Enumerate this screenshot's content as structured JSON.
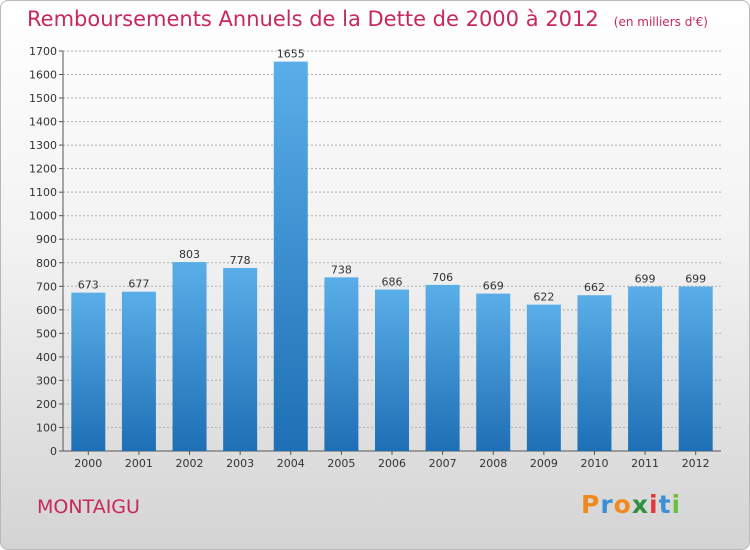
{
  "title": "Remboursements Annuels de la Dette de 2000 à 2012",
  "unit_note": "(en milliers d'€)",
  "commune": "MONTAIGU",
  "logo": {
    "letters": [
      "P",
      "r",
      "o",
      "x",
      "i",
      "t",
      "i"
    ],
    "colors": [
      "#f08a1e",
      "#3d8fd6",
      "#f08a1e",
      "#2f8f3f",
      "#e23a3a",
      "#3d8fd6",
      "#6fbf3f"
    ]
  },
  "colors": {
    "accent": "#c8285a",
    "bar_top": "#5aaee8",
    "bar_bottom": "#1e6fb5"
  },
  "chart_data": {
    "type": "bar",
    "categories": [
      "2000",
      "2001",
      "2002",
      "2003",
      "2004",
      "2005",
      "2006",
      "2007",
      "2008",
      "2009",
      "2010",
      "2011",
      "2012"
    ],
    "values": [
      673,
      677,
      803,
      778,
      1655,
      738,
      686,
      706,
      669,
      622,
      662,
      699,
      699
    ],
    "ylim": [
      0,
      1700
    ],
    "yticks": [
      0,
      100,
      200,
      300,
      400,
      500,
      600,
      700,
      800,
      900,
      1000,
      1100,
      1200,
      1300,
      1400,
      1500,
      1600,
      1700
    ],
    "grid": true,
    "legend": "none"
  }
}
